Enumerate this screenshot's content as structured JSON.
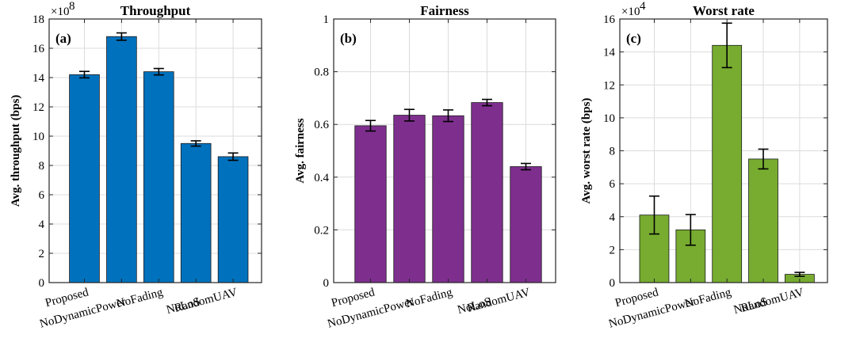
{
  "chart_data": [
    {
      "type": "bar",
      "panel_label": "(a)",
      "title": "Throughput",
      "ylabel": "Avg. throughput (bps)",
      "exponent_base": "×10",
      "exponent_power": "8",
      "ylim": [
        0,
        18
      ],
      "ytick_values": [
        0,
        2,
        4,
        6,
        8,
        10,
        12,
        14,
        16,
        18
      ],
      "ytick_labels": [
        "0",
        "2",
        "4",
        "6",
        "8",
        "10",
        "12",
        "14",
        "16",
        "18"
      ],
      "categories": [
        "Proposed",
        "NoDynamicPower",
        "NoFading",
        "NoLoS",
        "RandomUAV"
      ],
      "values": [
        14.2,
        16.8,
        14.4,
        9.5,
        8.6
      ],
      "errors": [
        0.22,
        0.25,
        0.22,
        0.18,
        0.25
      ],
      "bar_color": "#0072BD",
      "grid": true
    },
    {
      "type": "bar",
      "panel_label": "(b)",
      "title": "Fairness",
      "ylabel": "Avg. fairness",
      "exponent_base": "",
      "exponent_power": "",
      "ylim": [
        0,
        1
      ],
      "ytick_values": [
        0,
        0.2,
        0.4,
        0.6,
        0.8,
        1
      ],
      "ytick_labels": [
        "0",
        "0.2",
        "0.4",
        "0.6",
        "0.8",
        "1"
      ],
      "categories": [
        "Proposed",
        "NoDynamicPower",
        "NoFading",
        "NoLoS",
        "RandomUAV"
      ],
      "values": [
        0.595,
        0.635,
        0.633,
        0.683,
        0.44
      ],
      "errors": [
        0.02,
        0.022,
        0.022,
        0.012,
        0.012
      ],
      "bar_color": "#7E2F8E",
      "grid": true
    },
    {
      "type": "bar",
      "panel_label": "(c)",
      "title": "Worst rate",
      "ylabel": "Avg. worst rate (bps)",
      "exponent_base": "×10",
      "exponent_power": "4",
      "ylim": [
        0,
        16
      ],
      "ytick_values": [
        0,
        2,
        4,
        6,
        8,
        10,
        12,
        14,
        16
      ],
      "ytick_labels": [
        "0",
        "2",
        "4",
        "6",
        "8",
        "10",
        "12",
        "14",
        "16"
      ],
      "categories": [
        "Proposed",
        "NoDynamicPower",
        "NoFading",
        "NoLoS",
        "RandomUAV"
      ],
      "values": [
        4.1,
        3.2,
        14.4,
        7.5,
        0.5
      ],
      "errors": [
        1.15,
        0.93,
        1.35,
        0.6,
        0.12
      ],
      "bar_color": "#77AC30",
      "grid": true
    }
  ]
}
